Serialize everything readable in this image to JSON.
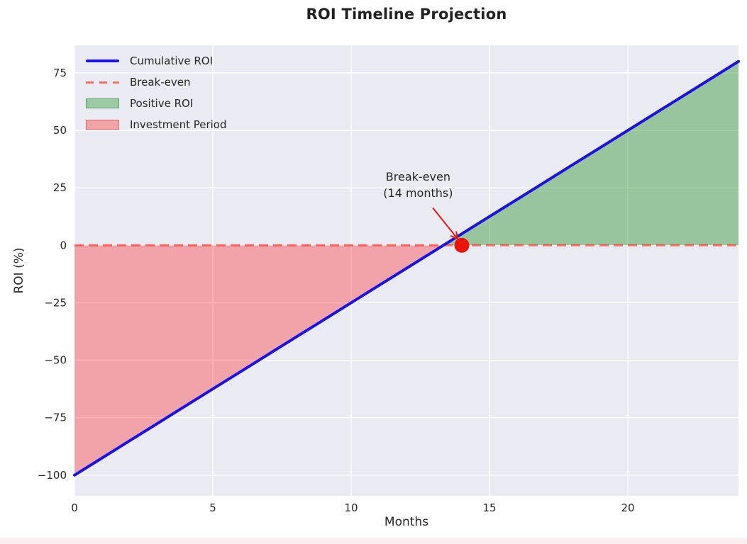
{
  "chart_data": {
    "type": "line",
    "title": "ROI Timeline Projection",
    "xlabel": "Months",
    "ylabel": "ROI (%)",
    "x": [
      0,
      1,
      2,
      3,
      4,
      5,
      6,
      7,
      8,
      9,
      10,
      11,
      12,
      13,
      14,
      15,
      16,
      17,
      18,
      19,
      20,
      21,
      22,
      23,
      24
    ],
    "series": [
      {
        "name": "Cumulative ROI",
        "values": [
          -100,
          -92.5,
          -85,
          -77.5,
          -70,
          -62.5,
          -55,
          -47.5,
          -40,
          -32.5,
          -25,
          -17.5,
          -10,
          -2.5,
          5,
          12.5,
          20,
          27.5,
          35,
          42.5,
          50,
          57.5,
          65,
          72.5,
          80
        ],
        "color": "#1b12e2",
        "line_width": 4
      }
    ],
    "break_even_line": {
      "label": "Break-even",
      "y": 0,
      "color": "rgba(255,30,20,0.6)",
      "style": "dashed"
    },
    "fills": [
      {
        "name": "Positive ROI",
        "where": "series_above_zero",
        "color": "rgba(0,128,0,0.35)"
      },
      {
        "name": "Investment Period",
        "where": "series_below_zero",
        "color": "rgba(255,0,0,0.30)"
      }
    ],
    "marker": {
      "x": 14,
      "y": 0,
      "color": "#ea1408",
      "radius": 10.5
    },
    "annotation": {
      "lines": [
        "Break-even",
        "(14 months)"
      ],
      "text_pos": [
        12.42,
        26.3
      ],
      "arrow_from": [
        12.95,
        16.3
      ],
      "arrow_to": [
        13.85,
        2.8
      ],
      "arrow_color": "#e3180c"
    },
    "xlim": [
      0,
      24
    ],
    "ylim": [
      -109,
      87
    ],
    "x_ticks": [
      0,
      5,
      10,
      15,
      20
    ],
    "y_ticks": [
      -100,
      -75,
      -50,
      -25,
      0,
      25,
      50,
      75
    ],
    "grid": true,
    "legend_position": "upper-left",
    "legend": [
      {
        "label": "Cumulative ROI",
        "swatch": "line",
        "color": "#1b12e2"
      },
      {
        "label": "Break-even",
        "swatch": "dashed",
        "color": "#f0736a"
      },
      {
        "label": "Positive ROI",
        "swatch": "patch",
        "fill": "#9ec9a5",
        "border": "#56a060"
      },
      {
        "label": "Investment Period",
        "swatch": "patch",
        "fill": "#f2a3a8",
        "border": "#e4646a"
      }
    ],
    "colors": {
      "plot_bg": "#eaeaf2",
      "grid": "#ffffff",
      "text": "#262626"
    }
  }
}
